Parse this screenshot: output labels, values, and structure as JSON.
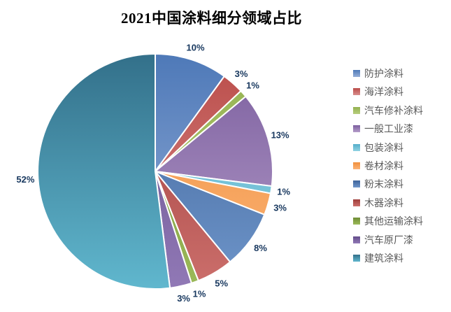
{
  "title": "2021中国涂料细分领域占比",
  "colors": {
    "background": "#FFFFFF",
    "title_text": "#000000",
    "percent_label": "#17375E",
    "legend_text": "#595959",
    "slice_border": "#FFFFFF"
  },
  "chart_data": {
    "type": "pie",
    "title": "2021中国涂料细分领域占比",
    "unit": "%",
    "legend_position": "right",
    "start_angle_deg": 0,
    "direction": "clockwise",
    "series": [
      {
        "name": "防护涂料",
        "value": 10,
        "label": "10%",
        "gradient": [
          "#4E79B8",
          "#96AFD8"
        ],
        "legend_color": "#6E92C4"
      },
      {
        "name": "海洋涂料",
        "value": 3,
        "label": "3%",
        "gradient": [
          "#BA4B48",
          "#D98F8D"
        ],
        "legend_color": "#CB6562"
      },
      {
        "name": "汽车修补涂料",
        "value": 1,
        "label": "1%",
        "gradient": [
          "#93B14F",
          "#B8CE7E"
        ],
        "legend_color": "#A8C36B"
      },
      {
        "name": "一般工业漆",
        "value": 13,
        "label": "13%",
        "gradient": [
          "#7B5E9E",
          "#B49CC9"
        ],
        "legend_color": "#9379AE"
      },
      {
        "name": "包装涂料",
        "value": 1,
        "label": "1%",
        "gradient": [
          "#55AECA",
          "#8FD2E2"
        ],
        "legend_color": "#76C3D6"
      },
      {
        "name": "卷材涂料",
        "value": 3,
        "label": "3%",
        "gradient": [
          "#F0903C",
          "#FBB377"
        ],
        "legend_color": "#F9A45C"
      },
      {
        "name": "粉末涂料",
        "value": 8,
        "label": "8%",
        "gradient": [
          "#3E639A",
          "#6F96CA"
        ],
        "legend_color": "#4B77AC"
      },
      {
        "name": "木器涂料",
        "value": 5,
        "label": "5%",
        "gradient": [
          "#9E3C39",
          "#CC6F6C"
        ],
        "legend_color": "#B04744"
      },
      {
        "name": "其他运输涂料",
        "value": 1,
        "label": "1%",
        "gradient": [
          "#6E8C35",
          "#9CBA59"
        ],
        "legend_color": "#82A342"
      },
      {
        "name": "汽车原厂漆",
        "value": 3,
        "label": "3%",
        "gradient": [
          "#634C8A",
          "#9179B6"
        ],
        "legend_color": "#715796"
      },
      {
        "name": "建筑涂料",
        "value": 52,
        "label": "52%",
        "gradient": [
          "#33708A",
          "#60B7CE"
        ],
        "legend_color": "#3E9DB5"
      }
    ]
  }
}
